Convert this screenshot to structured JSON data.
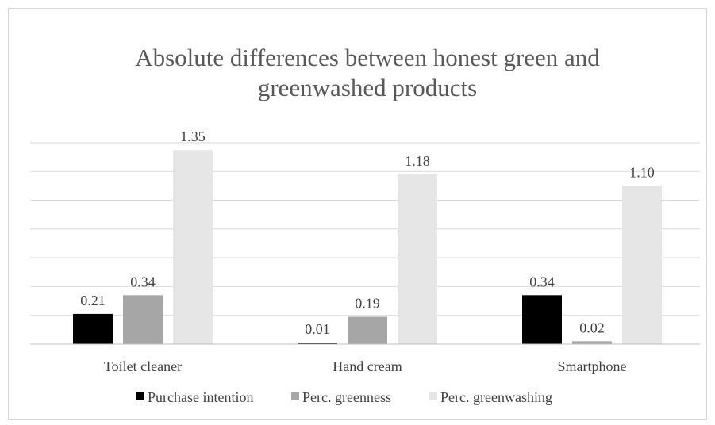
{
  "chart_data": {
    "type": "bar",
    "title": "Absolute differences between honest green and greenwashed products",
    "title_lines": [
      "Absolute differences between honest green and",
      "greenwashed products"
    ],
    "categories": [
      "Toilet cleaner",
      "Hand cream",
      "Smartphone"
    ],
    "series": [
      {
        "name": "Purchase intention",
        "color": "#000000",
        "values": [
          0.21,
          0.01,
          0.34
        ],
        "labels": [
          "0.21",
          "0.01",
          "0.34"
        ]
      },
      {
        "name": "Perc. greenness",
        "color": "#a6a6a6",
        "values": [
          0.34,
          0.19,
          0.02
        ],
        "labels": [
          "0.34",
          "0.19",
          "0.02"
        ]
      },
      {
        "name": "Perc. greenwashing",
        "color": "#e6e6e6",
        "values": [
          1.35,
          1.18,
          1.1
        ],
        "labels": [
          "1.35",
          "1.18",
          "1.10"
        ]
      }
    ],
    "ylim": [
      0,
      1.4
    ],
    "ytick_step": 0.2,
    "xlabel": "",
    "ylabel": "",
    "grid": true,
    "y_axis_labels_shown": false,
    "legend_position": "bottom"
  }
}
